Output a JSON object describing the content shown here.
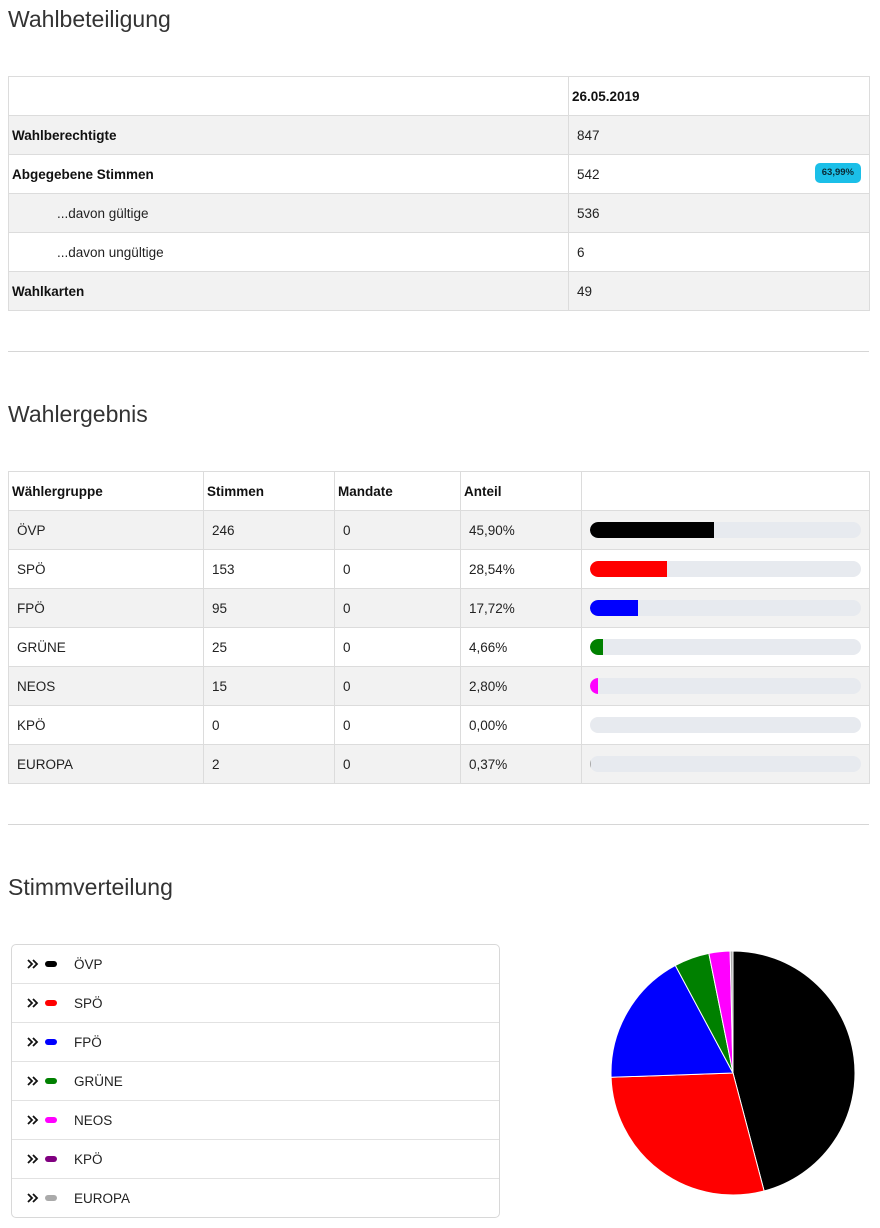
{
  "turnout": {
    "title": "Wahlbeteiligung",
    "date_header": "26.05.2019",
    "rows": [
      {
        "label": "Wahlberechtigte",
        "value": "847"
      },
      {
        "label": "Abgegebene Stimmen",
        "value": "542",
        "badge": "63,99%"
      },
      {
        "label": "...davon gültige",
        "value": "536"
      },
      {
        "label": "...davon ungültige",
        "value": "6"
      },
      {
        "label": "Wahlkarten",
        "value": "49"
      }
    ]
  },
  "results": {
    "title": "Wahlergebnis",
    "headers": [
      "Wählergruppe",
      "Stimmen",
      "Mandate",
      "Anteil"
    ],
    "rows": [
      {
        "party": "ÖVP",
        "votes": "246",
        "seats": "0",
        "share": "45,90%",
        "fraction": 0.459,
        "color": "#000000"
      },
      {
        "party": "SPÖ",
        "votes": "153",
        "seats": "0",
        "share": "28,54%",
        "fraction": 0.2854,
        "color": "#ff0000"
      },
      {
        "party": "FPÖ",
        "votes": "95",
        "seats": "0",
        "share": "17,72%",
        "fraction": 0.1772,
        "color": "#0000ff"
      },
      {
        "party": "GRÜNE",
        "votes": "25",
        "seats": "0",
        "share": "4,66%",
        "fraction": 0.0466,
        "color": "#008000"
      },
      {
        "party": "NEOS",
        "votes": "15",
        "seats": "0",
        "share": "2,80%",
        "fraction": 0.028,
        "color": "#ff00ff"
      },
      {
        "party": "KPÖ",
        "votes": "0",
        "seats": "0",
        "share": "0,00%",
        "fraction": 0.0,
        "color": "#800080"
      },
      {
        "party": "EUROPA",
        "votes": "2",
        "seats": "0",
        "share": "0,37%",
        "fraction": 0.0037,
        "color": "#aaaaaa"
      }
    ]
  },
  "distribution": {
    "title": "Stimmverteilung",
    "legend": [
      {
        "label": "ÖVP",
        "color": "#000000",
        "icon": "double-chevron-right-icon"
      },
      {
        "label": "SPÖ",
        "color": "#ff0000",
        "icon": "double-chevron-right-icon"
      },
      {
        "label": "FPÖ",
        "color": "#0000ff",
        "icon": "double-chevron-right-icon"
      },
      {
        "label": "GRÜNE",
        "color": "#008000",
        "icon": "double-chevron-right-icon"
      },
      {
        "label": "NEOS",
        "color": "#ff00ff",
        "icon": "double-chevron-right-icon"
      },
      {
        "label": "KPÖ",
        "color": "#800080",
        "icon": "double-chevron-right-icon"
      },
      {
        "label": "EUROPA",
        "color": "#aaaaaa",
        "icon": "double-chevron-right-icon"
      }
    ]
  },
  "chart_data": {
    "type": "pie",
    "categories": [
      "ÖVP",
      "SPÖ",
      "FPÖ",
      "GRÜNE",
      "NEOS",
      "KPÖ",
      "EUROPA"
    ],
    "values": [
      246,
      153,
      95,
      25,
      15,
      0,
      2
    ],
    "colors": [
      "#000000",
      "#ff0000",
      "#0000ff",
      "#008000",
      "#ff00ff",
      "#800080",
      "#aaaaaa"
    ],
    "title": ""
  }
}
